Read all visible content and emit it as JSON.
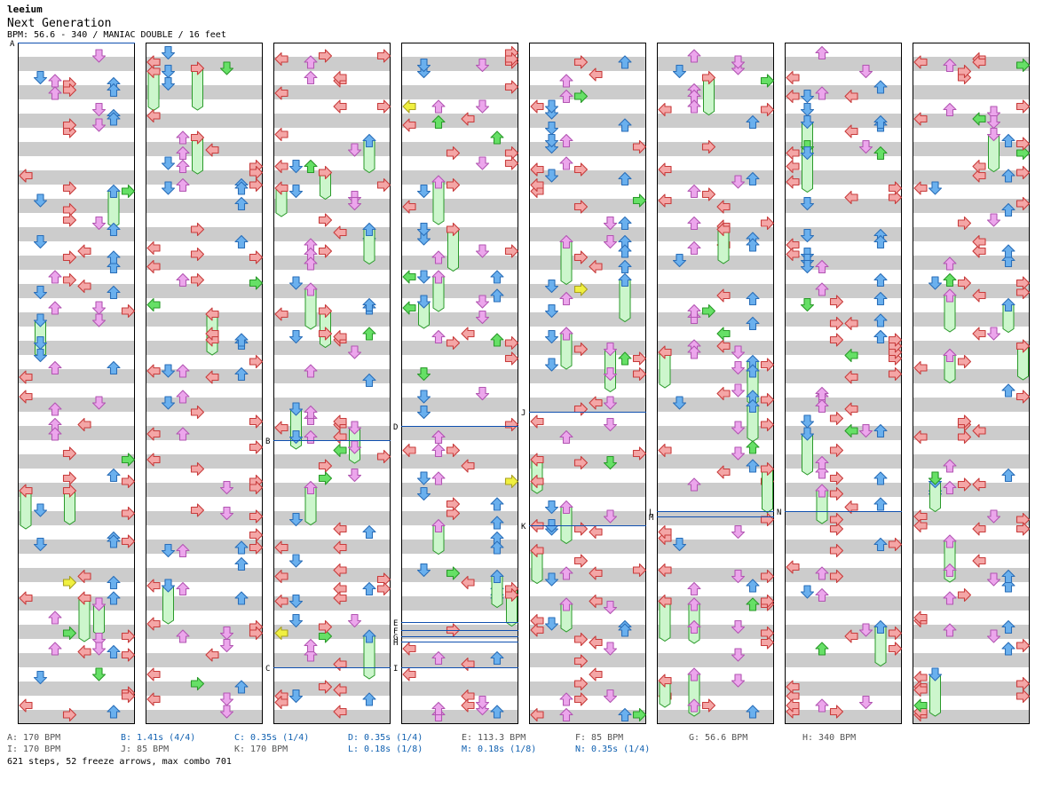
{
  "header": {
    "artist": "leeium",
    "title": "Next Generation",
    "meta": "BPM: 56.6 - 340 / MANIAC DOUBLE / 16 feet"
  },
  "colors": {
    "row_gray": "#cccccc",
    "row_white": "#ffffff",
    "line_blue": "#1050b0",
    "arrow_red": "#f4a6a6",
    "arrow_blue": "#6ab0ee",
    "arrow_pink": "#eca6ec",
    "arrow_green": "#66e066",
    "arrow_yellow": "#f0f040",
    "freeze_body": "#ccf6cc"
  },
  "markers": [
    {
      "label": "A",
      "col": 0,
      "measure": 0
    },
    {
      "label": "B",
      "col": 2,
      "measure": 7
    },
    {
      "label": "C",
      "col": 2,
      "measure": 11
    },
    {
      "label": "D",
      "col": 3,
      "measure": 6.75
    },
    {
      "label": "E",
      "col": 3,
      "measure": 10.2
    },
    {
      "label": "F",
      "col": 3,
      "measure": 10.35
    },
    {
      "label": "G",
      "col": 3,
      "measure": 10.45
    },
    {
      "label": "H",
      "col": 3,
      "measure": 10.55
    },
    {
      "label": "I",
      "col": 3,
      "measure": 11
    },
    {
      "label": "J",
      "col": 4,
      "measure": 6.5
    },
    {
      "label": "K",
      "col": 4,
      "measure": 8.5
    },
    {
      "label": "L",
      "col": 5,
      "measure": 8.25
    },
    {
      "label": "M",
      "col": 5,
      "measure": 8.35
    },
    {
      "label": "N",
      "col": 6,
      "measure": 8.25
    }
  ],
  "legend": {
    "row1": [
      {
        "text": "A: 170 BPM",
        "style": "k"
      },
      {
        "text": "B: 1.41s (4/4)",
        "style": "b"
      },
      {
        "text": "C: 0.35s (1/4)",
        "style": "b"
      },
      {
        "text": "D: 0.35s (1/4)",
        "style": "b"
      },
      {
        "text": "E: 113.3 BPM",
        "style": "k"
      },
      {
        "text": "F: 85 BPM",
        "style": "k"
      },
      {
        "text": "G: 56.6 BPM",
        "style": "k"
      },
      {
        "text": "H: 340 BPM",
        "style": "k"
      }
    ],
    "row2": [
      {
        "text": "I: 170 BPM",
        "style": "k"
      },
      {
        "text": "J: 85 BPM",
        "style": "k"
      },
      {
        "text": "K: 170 BPM",
        "style": "k"
      },
      {
        "text": "L: 0.18s (1/8)",
        "style": "b"
      },
      {
        "text": "M: 0.18s (1/8)",
        "style": "b"
      },
      {
        "text": "N: 0.35s (1/4)",
        "style": "b"
      }
    ]
  },
  "stats": "621 steps, 52 freeze arrows, max combo 701"
}
